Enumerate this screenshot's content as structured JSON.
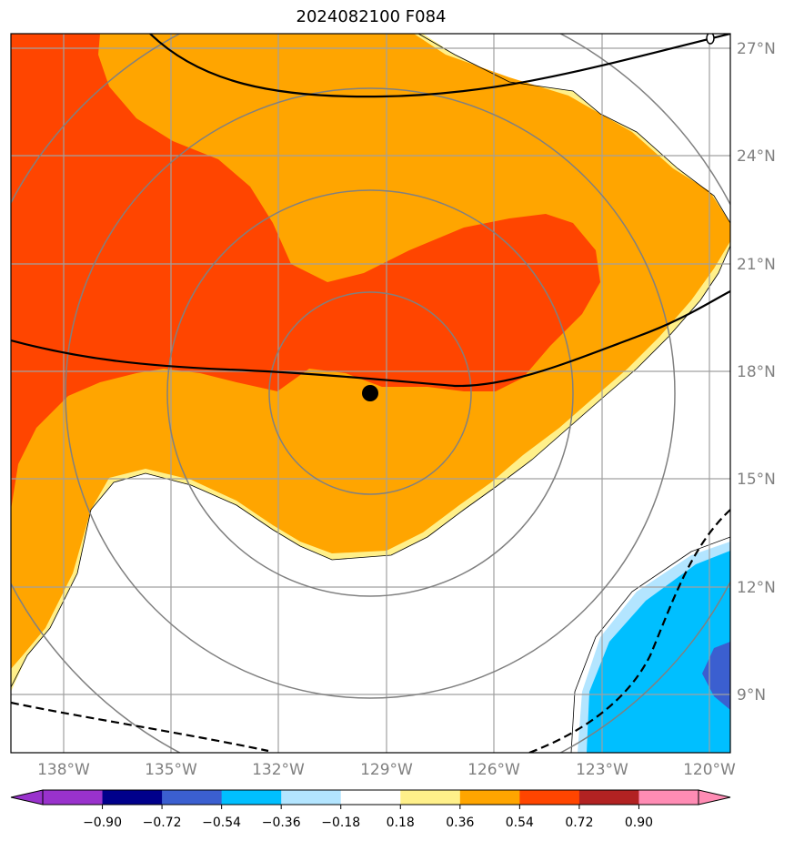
{
  "title": "2024082100 F084",
  "map": {
    "lat_labels": [
      "27°N",
      "24°N",
      "21°N",
      "18°N",
      "15°N",
      "12°N",
      "9°N"
    ],
    "lon_labels": [
      "138°W",
      "135°W",
      "132°W",
      "129°W",
      "126°W",
      "123°W",
      "120°W"
    ],
    "storm_center_marker": "black-dot",
    "range_rings": 4,
    "colors": {
      "red": "#ff4500",
      "orange": "#ffa500",
      "light_yellow": "#fff08a",
      "blue": "#00bfff",
      "light_blue": "#b3e5ff",
      "royal_blue": "#3b5fd0",
      "grid": "#a0a0a0",
      "ring": "#808080"
    }
  },
  "colorbar": {
    "tick_labels": [
      "−0.90",
      "−0.72",
      "−0.54",
      "−0.36",
      "−0.18",
      "0.18",
      "0.36",
      "0.54",
      "0.72",
      "0.90"
    ],
    "colors": [
      "#9932cc",
      "#00008b",
      "#3b5fd0",
      "#00bfff",
      "#b3e5ff",
      "#ffffff",
      "#fff08a",
      "#ffa500",
      "#ff4500",
      "#b22222",
      "#ff8cb4",
      "#ff8cb4"
    ]
  }
}
